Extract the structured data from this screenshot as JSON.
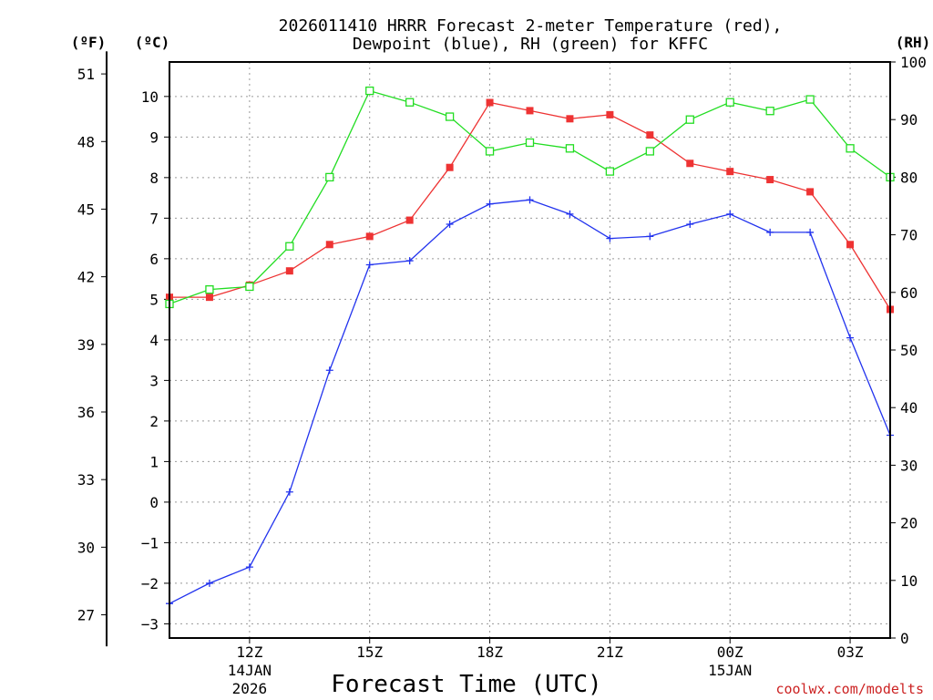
{
  "chart_data": {
    "type": "line",
    "title": "2026011410 HRRR Forecast 2-meter Temperature (red),",
    "subtitle": "Dewpoint (blue), RH (green) for KFFC",
    "xlabel": "Forecast Time (UTC)",
    "credit": "coolwx.com/modelts",
    "y_left_label": "(ºC)",
    "y_far_left_label": "(ºF)",
    "y_right_label": "(RH)",
    "x_ticks": [
      {
        "hour": 12,
        "label": "12Z",
        "line2": "14JAN",
        "line3": "2026"
      },
      {
        "hour": 15,
        "label": "15Z",
        "line2": "",
        "line3": ""
      },
      {
        "hour": 18,
        "label": "18Z",
        "line2": "",
        "line3": ""
      },
      {
        "hour": 21,
        "label": "21Z",
        "line2": "",
        "line3": ""
      },
      {
        "hour": 24,
        "label": "00Z",
        "line2": "15JAN",
        "line3": ""
      },
      {
        "hour": 27,
        "label": "03Z",
        "line2": "",
        "line3": ""
      }
    ],
    "xlim": [
      10,
      28
    ],
    "ylim_c": [
      -3.35,
      10.85
    ],
    "ylim_rh": [
      0,
      100
    ],
    "c_ticks": [
      "−3",
      "−2",
      "−1",
      "0",
      "1",
      "2",
      "3",
      "4",
      "5",
      "6",
      "7",
      "8",
      "9",
      "10"
    ],
    "f_ticks": [
      "27",
      "30",
      "33",
      "36",
      "39",
      "42",
      "45",
      "48",
      "51"
    ],
    "rh_ticks": [
      "0",
      "10",
      "20",
      "30",
      "40",
      "50",
      "60",
      "70",
      "80",
      "90",
      "100"
    ],
    "x_hours": [
      10,
      11,
      12,
      13,
      14,
      15,
      16,
      17,
      18,
      19,
      20,
      21,
      22,
      23,
      24,
      25,
      26,
      27,
      28
    ],
    "series": [
      {
        "name": "Temperature",
        "unit": "C",
        "color": "#ee3333",
        "marker": "filled-square",
        "values": [
          5.05,
          5.05,
          5.35,
          5.7,
          6.35,
          6.55,
          6.95,
          8.25,
          9.85,
          9.65,
          9.45,
          9.55,
          9.05,
          8.35,
          8.15,
          7.95,
          7.65,
          6.35,
          4.75
        ]
      },
      {
        "name": "Dewpoint",
        "unit": "C",
        "color": "#2233ee",
        "marker": "plus",
        "values": [
          -2.5,
          -2.0,
          -1.6,
          0.25,
          3.25,
          5.85,
          5.95,
          6.85,
          7.35,
          7.45,
          7.1,
          6.5,
          6.55,
          6.85,
          7.1,
          6.65,
          6.65,
          4.05,
          1.65
        ]
      },
      {
        "name": "RH",
        "unit": "%",
        "color": "#22dd22",
        "marker": "open-square",
        "values": [
          58,
          60.5,
          61,
          68,
          80,
          95,
          93,
          90.5,
          84.5,
          86,
          85,
          81,
          84.5,
          90,
          93,
          91.5,
          93.5,
          85,
          80
        ]
      }
    ]
  }
}
